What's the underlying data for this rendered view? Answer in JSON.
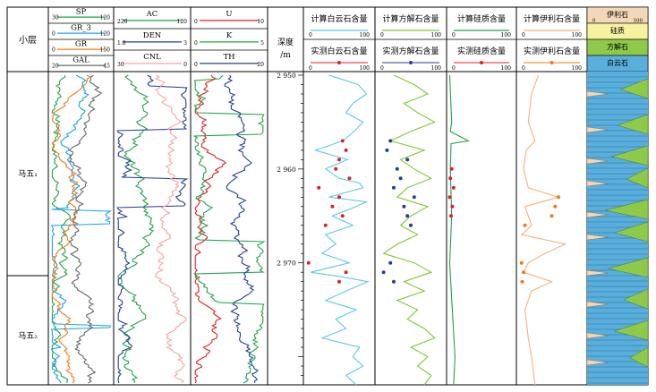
{
  "zones_header": "小层",
  "zones": [
    "马五₁",
    "马五₂"
  ],
  "depth": {
    "header": "深度",
    "unit": "/m",
    "ticks": [
      2950,
      2960,
      2970
    ],
    "range": [
      2950,
      2983
    ]
  },
  "tracks": [
    {
      "id": "t1",
      "curves": [
        {
          "name": "SP",
          "lo": "30",
          "hi": "120",
          "color": "#22a34a"
        },
        {
          "name": "GR_3",
          "lo": "0",
          "hi": "120",
          "color": "#1aa3e8"
        },
        {
          "name": "GR",
          "lo": "0",
          "hi": "150",
          "color": "#f07a1a"
        },
        {
          "name": "GAL",
          "lo": "20",
          "hi": "45",
          "color": "#666666"
        }
      ]
    },
    {
      "id": "t2",
      "curves": [
        {
          "name": "AC",
          "lo": "220",
          "hi": "120",
          "color": "#22a34a"
        },
        {
          "name": "DEN",
          "lo": "1.8",
          "hi": "3",
          "color": "#243e96"
        },
        {
          "name": "CNL",
          "lo": "30",
          "hi": "0",
          "color": "#f4a3a3"
        }
      ]
    },
    {
      "id": "t3",
      "curves": [
        {
          "name": "U",
          "lo": "0",
          "hi": "10",
          "color": "#e02020"
        },
        {
          "name": "K",
          "lo": "0",
          "hi": "5",
          "color": "#22a34a"
        },
        {
          "name": "TH",
          "lo": "0",
          "hi": "20",
          "color": "#243e96"
        }
      ]
    }
  ],
  "mineral_tracks": [
    {
      "id": "dol",
      "calc": "计算白云石含量",
      "meas": "实测白云石含量",
      "lo": "0",
      "hi": "100",
      "line_color": "#5bc8ec",
      "dot_color": "#e02020"
    },
    {
      "id": "cal",
      "calc": "计算方解石含量",
      "meas": "实测方解石含量",
      "lo": "0",
      "hi": "100",
      "line_color": "#7ec832",
      "dot_color": "#243e96"
    },
    {
      "id": "sil",
      "calc": "计算硅质含量",
      "meas": "实测硅质含量",
      "lo": "0",
      "hi": "100",
      "line_color": "#22a34a",
      "dot_color": "#e02020"
    },
    {
      "id": "ill",
      "calc": "计算伊利石含量",
      "meas": "实测伊利石含量",
      "lo": "0",
      "hi": "100",
      "line_color": "#f7b27a",
      "dot_color": "#f07a1a"
    }
  ],
  "lith_legend": [
    {
      "label": "伊利石",
      "lo": "0",
      "hi": "100",
      "color": "#f2d8b8"
    },
    {
      "label": "硅质",
      "color": "#f6f2a0"
    },
    {
      "label": "方解石",
      "color": "#8fc94a"
    },
    {
      "label": "白云石",
      "color": "#5aaedc"
    }
  ],
  "chart_data": {
    "type": "line",
    "y_axis": {
      "label": "深度/m",
      "range": [
        2950,
        2983
      ],
      "reversed": true
    },
    "series": [
      {
        "name": "计算白云石含量",
        "x_range": [
          0,
          100
        ],
        "points": [
          [
            2950,
            35
          ],
          [
            2951,
            78
          ],
          [
            2952,
            90
          ],
          [
            2953,
            70
          ],
          [
            2954,
            60
          ],
          [
            2955,
            85
          ],
          [
            2956,
            72
          ],
          [
            2957,
            55
          ],
          [
            2958,
            15
          ],
          [
            2959,
            62
          ],
          [
            2960,
            30
          ],
          [
            2961,
            50
          ],
          [
            2961.5,
            80
          ],
          [
            2962,
            85
          ],
          [
            2963,
            35
          ],
          [
            2963.5,
            90
          ],
          [
            2964,
            75
          ],
          [
            2965,
            40
          ],
          [
            2966,
            70
          ],
          [
            2967,
            30
          ],
          [
            2968,
            45
          ],
          [
            2969,
            25
          ],
          [
            2970,
            65
          ],
          [
            2971,
            8
          ],
          [
            2971.5,
            55
          ],
          [
            2972,
            92
          ],
          [
            2973,
            60
          ],
          [
            2974,
            30
          ],
          [
            2975,
            75
          ],
          [
            2976,
            45
          ],
          [
            2977,
            60
          ],
          [
            2978,
            25
          ],
          [
            2979,
            80
          ],
          [
            2980,
            70
          ],
          [
            2981,
            85
          ],
          [
            2982,
            60
          ],
          [
            2983,
            75
          ]
        ]
      },
      {
        "name": "实测白云石含量",
        "x_range": [
          0,
          100
        ],
        "points": [
          [
            2957,
            55
          ],
          [
            2958,
            60
          ],
          [
            2959,
            50
          ],
          [
            2960,
            45
          ],
          [
            2961,
            65
          ],
          [
            2962,
            20
          ],
          [
            2963,
            50
          ],
          [
            2964,
            40
          ],
          [
            2965,
            55
          ],
          [
            2966,
            30
          ],
          [
            2970,
            5
          ],
          [
            2971,
            60
          ],
          [
            2972,
            50
          ]
        ]
      },
      {
        "name": "计算方解石含量",
        "x_range": [
          0,
          100
        ],
        "points": [
          [
            2950,
            25
          ],
          [
            2951,
            55
          ],
          [
            2952,
            75
          ],
          [
            2953,
            40
          ],
          [
            2954,
            60
          ],
          [
            2955,
            85
          ],
          [
            2956,
            50
          ],
          [
            2957,
            20
          ],
          [
            2958,
            70
          ],
          [
            2959,
            35
          ],
          [
            2960,
            55
          ],
          [
            2961,
            80
          ],
          [
            2962,
            45
          ],
          [
            2963,
            30
          ],
          [
            2964,
            75
          ],
          [
            2965,
            50
          ],
          [
            2966,
            35
          ],
          [
            2967,
            60
          ],
          [
            2968,
            30
          ],
          [
            2969,
            10
          ],
          [
            2970,
            55
          ],
          [
            2971,
            80
          ],
          [
            2972,
            40
          ],
          [
            2973,
            70
          ],
          [
            2974,
            30
          ],
          [
            2975,
            60
          ],
          [
            2976,
            45
          ],
          [
            2977,
            70
          ],
          [
            2978,
            85
          ],
          [
            2979,
            50
          ],
          [
            2980,
            75
          ],
          [
            2981,
            60
          ],
          [
            2982,
            80
          ],
          [
            2983,
            70
          ]
        ]
      },
      {
        "name": "实测方解石含量",
        "x_range": [
          0,
          100
        ],
        "points": [
          [
            2957,
            20
          ],
          [
            2958,
            15
          ],
          [
            2959,
            45
          ],
          [
            2960,
            30
          ],
          [
            2961,
            35
          ],
          [
            2962,
            25
          ],
          [
            2963,
            55
          ],
          [
            2964,
            40
          ],
          [
            2965,
            45
          ],
          [
            2966,
            50
          ],
          [
            2970,
            20
          ],
          [
            2971,
            10
          ],
          [
            2972,
            25
          ]
        ]
      },
      {
        "name": "计算硅质含量",
        "x_range": [
          0,
          100
        ],
        "points": [
          [
            2950,
            2
          ],
          [
            2955,
            5
          ],
          [
            2956,
            3
          ],
          [
            2957,
            30
          ],
          [
            2957.3,
            4
          ],
          [
            2960,
            3
          ],
          [
            2965,
            5
          ],
          [
            2970,
            2
          ],
          [
            2975,
            6
          ],
          [
            2980,
            10
          ],
          [
            2983,
            8
          ]
        ]
      },
      {
        "name": "实测硅质含量",
        "x_range": [
          0,
          100
        ],
        "points": [
          [
            2960,
            5
          ],
          [
            2961,
            3
          ],
          [
            2962,
            8
          ],
          [
            2963,
            2
          ],
          [
            2964,
            6
          ],
          [
            2965,
            4
          ]
        ]
      },
      {
        "name": "计算伊利石含量",
        "x_range": [
          0,
          100
        ],
        "points": [
          [
            2950,
            30
          ],
          [
            2952,
            20
          ],
          [
            2955,
            15
          ],
          [
            2957,
            25
          ],
          [
            2958,
            12
          ],
          [
            2960,
            8
          ],
          [
            2962,
            15
          ],
          [
            2963,
            60
          ],
          [
            2964,
            10
          ],
          [
            2966,
            20
          ],
          [
            2967,
            5
          ],
          [
            2968,
            70
          ],
          [
            2969,
            40
          ],
          [
            2970,
            15
          ],
          [
            2971,
            8
          ],
          [
            2972,
            50
          ],
          [
            2973,
            20
          ],
          [
            2975,
            10
          ],
          [
            2978,
            15
          ],
          [
            2980,
            20
          ],
          [
            2983,
            25
          ]
        ]
      },
      {
        "name": "实测伊利石含量",
        "x_range": [
          0,
          100
        ],
        "points": [
          [
            2963,
            60
          ],
          [
            2964,
            55
          ],
          [
            2965,
            50
          ],
          [
            2966,
            10
          ],
          [
            2970,
            5
          ],
          [
            2971,
            8
          ],
          [
            2972,
            6
          ]
        ]
      }
    ]
  }
}
